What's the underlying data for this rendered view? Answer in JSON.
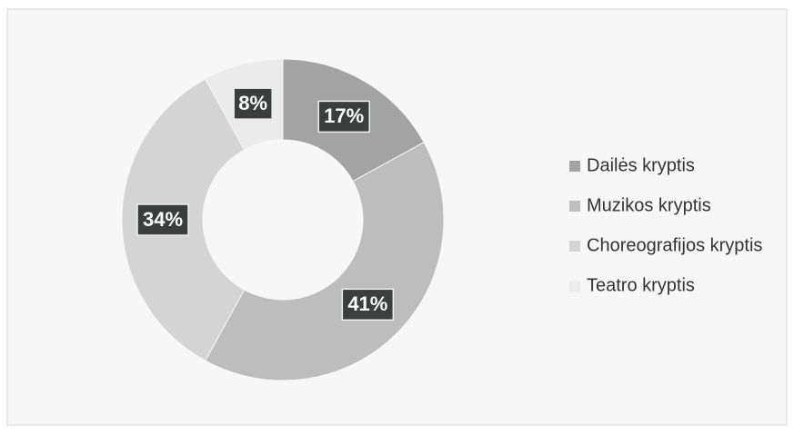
{
  "chart_data": {
    "type": "donut",
    "categories": [
      "Dailės kryptis",
      "Muzikos kryptis",
      "Choreografijos kryptis",
      "Teatro kryptis"
    ],
    "values": [
      17,
      41,
      34,
      8
    ],
    "value_labels": [
      "17%",
      "41%",
      "34%",
      "8%"
    ],
    "colors": [
      "#a3a3a3",
      "#bdbdbd",
      "#d4d4d4",
      "#ebebeb"
    ],
    "legend": "right"
  }
}
